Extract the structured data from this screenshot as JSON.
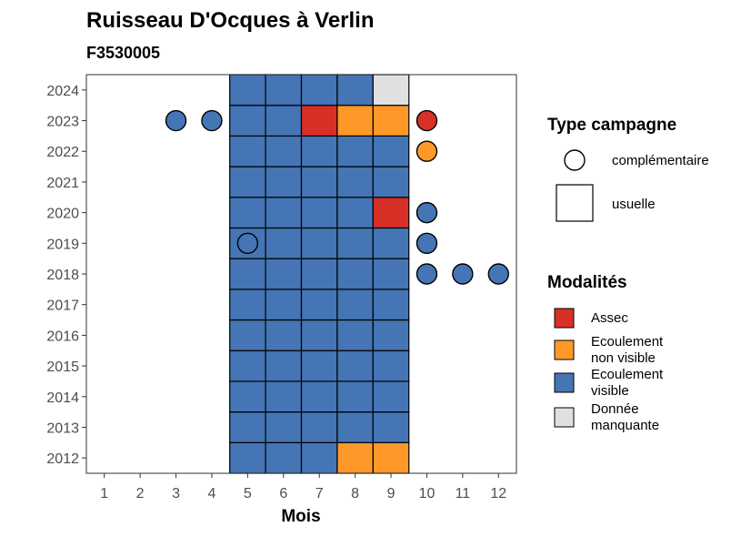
{
  "chart_data": {
    "type": "heatmap",
    "title": "Ruisseau D'Ocques à Verlin",
    "subtitle": "F3530005",
    "xlabel": "Mois",
    "ylabel": "",
    "x_ticks": [
      "1",
      "2",
      "3",
      "4",
      "5",
      "6",
      "7",
      "8",
      "9",
      "10",
      "11",
      "12"
    ],
    "y_ticks": [
      "2012",
      "2013",
      "2014",
      "2015",
      "2016",
      "2017",
      "2018",
      "2019",
      "2020",
      "2021",
      "2022",
      "2023",
      "2024"
    ],
    "xlim": [
      0.5,
      12.5
    ],
    "ylim": [
      2011.5,
      2024.5
    ],
    "grid": false,
    "colors": {
      "Assec": "#d73027",
      "Ecoulement non visible": "#fe9929",
      "Ecoulement visible": "#4575b4",
      "Donnée manquante": "#e0e0e0"
    },
    "usuelle": [
      {
        "year": 2012,
        "month": 5,
        "modalite": "Ecoulement visible"
      },
      {
        "year": 2012,
        "month": 6,
        "modalite": "Ecoulement visible"
      },
      {
        "year": 2012,
        "month": 7,
        "modalite": "Ecoulement visible"
      },
      {
        "year": 2012,
        "month": 8,
        "modalite": "Ecoulement non visible"
      },
      {
        "year": 2012,
        "month": 9,
        "modalite": "Ecoulement non visible"
      },
      {
        "year": 2013,
        "month": 5,
        "modalite": "Ecoulement visible"
      },
      {
        "year": 2013,
        "month": 6,
        "modalite": "Ecoulement visible"
      },
      {
        "year": 2013,
        "month": 7,
        "modalite": "Ecoulement visible"
      },
      {
        "year": 2013,
        "month": 8,
        "modalite": "Ecoulement visible"
      },
      {
        "year": 2013,
        "month": 9,
        "modalite": "Ecoulement visible"
      },
      {
        "year": 2014,
        "month": 5,
        "modalite": "Ecoulement visible"
      },
      {
        "year": 2014,
        "month": 6,
        "modalite": "Ecoulement visible"
      },
      {
        "year": 2014,
        "month": 7,
        "modalite": "Ecoulement visible"
      },
      {
        "year": 2014,
        "month": 8,
        "modalite": "Ecoulement visible"
      },
      {
        "year": 2014,
        "month": 9,
        "modalite": "Ecoulement visible"
      },
      {
        "year": 2015,
        "month": 5,
        "modalite": "Ecoulement visible"
      },
      {
        "year": 2015,
        "month": 6,
        "modalite": "Ecoulement visible"
      },
      {
        "year": 2015,
        "month": 7,
        "modalite": "Ecoulement visible"
      },
      {
        "year": 2015,
        "month": 8,
        "modalite": "Ecoulement visible"
      },
      {
        "year": 2015,
        "month": 9,
        "modalite": "Ecoulement visible"
      },
      {
        "year": 2016,
        "month": 5,
        "modalite": "Ecoulement visible"
      },
      {
        "year": 2016,
        "month": 6,
        "modalite": "Ecoulement visible"
      },
      {
        "year": 2016,
        "month": 7,
        "modalite": "Ecoulement visible"
      },
      {
        "year": 2016,
        "month": 8,
        "modalite": "Ecoulement visible"
      },
      {
        "year": 2016,
        "month": 9,
        "modalite": "Ecoulement visible"
      },
      {
        "year": 2017,
        "month": 5,
        "modalite": "Ecoulement visible"
      },
      {
        "year": 2017,
        "month": 6,
        "modalite": "Ecoulement visible"
      },
      {
        "year": 2017,
        "month": 7,
        "modalite": "Ecoulement visible"
      },
      {
        "year": 2017,
        "month": 8,
        "modalite": "Ecoulement visible"
      },
      {
        "year": 2017,
        "month": 9,
        "modalite": "Ecoulement visible"
      },
      {
        "year": 2018,
        "month": 5,
        "modalite": "Ecoulement visible"
      },
      {
        "year": 2018,
        "month": 6,
        "modalite": "Ecoulement visible"
      },
      {
        "year": 2018,
        "month": 7,
        "modalite": "Ecoulement visible"
      },
      {
        "year": 2018,
        "month": 8,
        "modalite": "Ecoulement visible"
      },
      {
        "year": 2018,
        "month": 9,
        "modalite": "Ecoulement visible"
      },
      {
        "year": 2019,
        "month": 5,
        "modalite": "Ecoulement visible"
      },
      {
        "year": 2019,
        "month": 6,
        "modalite": "Ecoulement visible"
      },
      {
        "year": 2019,
        "month": 7,
        "modalite": "Ecoulement visible"
      },
      {
        "year": 2019,
        "month": 8,
        "modalite": "Ecoulement visible"
      },
      {
        "year": 2019,
        "month": 9,
        "modalite": "Ecoulement visible"
      },
      {
        "year": 2020,
        "month": 5,
        "modalite": "Ecoulement visible"
      },
      {
        "year": 2020,
        "month": 6,
        "modalite": "Ecoulement visible"
      },
      {
        "year": 2020,
        "month": 7,
        "modalite": "Ecoulement visible"
      },
      {
        "year": 2020,
        "month": 8,
        "modalite": "Ecoulement visible"
      },
      {
        "year": 2020,
        "month": 9,
        "modalite": "Assec"
      },
      {
        "year": 2021,
        "month": 5,
        "modalite": "Ecoulement visible"
      },
      {
        "year": 2021,
        "month": 6,
        "modalite": "Ecoulement visible"
      },
      {
        "year": 2021,
        "month": 7,
        "modalite": "Ecoulement visible"
      },
      {
        "year": 2021,
        "month": 8,
        "modalite": "Ecoulement visible"
      },
      {
        "year": 2021,
        "month": 9,
        "modalite": "Ecoulement visible"
      },
      {
        "year": 2022,
        "month": 5,
        "modalite": "Ecoulement visible"
      },
      {
        "year": 2022,
        "month": 6,
        "modalite": "Ecoulement visible"
      },
      {
        "year": 2022,
        "month": 7,
        "modalite": "Ecoulement visible"
      },
      {
        "year": 2022,
        "month": 8,
        "modalite": "Ecoulement visible"
      },
      {
        "year": 2022,
        "month": 9,
        "modalite": "Ecoulement visible"
      },
      {
        "year": 2023,
        "month": 5,
        "modalite": "Ecoulement visible"
      },
      {
        "year": 2023,
        "month": 6,
        "modalite": "Ecoulement visible"
      },
      {
        "year": 2023,
        "month": 7,
        "modalite": "Assec"
      },
      {
        "year": 2023,
        "month": 8,
        "modalite": "Ecoulement non visible"
      },
      {
        "year": 2023,
        "month": 9,
        "modalite": "Ecoulement non visible"
      },
      {
        "year": 2024,
        "month": 5,
        "modalite": "Ecoulement visible"
      },
      {
        "year": 2024,
        "month": 6,
        "modalite": "Ecoulement visible"
      },
      {
        "year": 2024,
        "month": 7,
        "modalite": "Ecoulement visible"
      },
      {
        "year": 2024,
        "month": 8,
        "modalite": "Ecoulement visible"
      },
      {
        "year": 2024,
        "month": 9,
        "modalite": "Donnée manquante"
      }
    ],
    "complementaire": [
      {
        "year": 2023,
        "month": 3,
        "modalite": "Ecoulement visible"
      },
      {
        "year": 2023,
        "month": 4,
        "modalite": "Ecoulement visible"
      },
      {
        "year": 2023,
        "month": 10,
        "modalite": "Assec"
      },
      {
        "year": 2022,
        "month": 10,
        "modalite": "Ecoulement non visible"
      },
      {
        "year": 2020,
        "month": 10,
        "modalite": "Ecoulement visible"
      },
      {
        "year": 2019,
        "month": 5,
        "modalite": "Ecoulement visible"
      },
      {
        "year": 2019,
        "month": 10,
        "modalite": "Ecoulement visible"
      },
      {
        "year": 2018,
        "month": 10,
        "modalite": "Ecoulement visible"
      },
      {
        "year": 2018,
        "month": 11,
        "modalite": "Ecoulement visible"
      },
      {
        "year": 2018,
        "month": 12,
        "modalite": "Ecoulement visible"
      }
    ],
    "legends": {
      "shape": {
        "title": "Type campagne",
        "items": [
          "complémentaire",
          "usuelle"
        ]
      },
      "fill": {
        "title": "Modalités",
        "items": [
          {
            "lines": [
              "Assec"
            ],
            "key": "Assec"
          },
          {
            "lines": [
              "Ecoulement",
              "non visible"
            ],
            "key": "Ecoulement non visible"
          },
          {
            "lines": [
              "Ecoulement",
              "visible"
            ],
            "key": "Ecoulement visible"
          },
          {
            "lines": [
              "Donnée",
              "manquante"
            ],
            "key": "Donnée manquante"
          }
        ]
      },
      "placement": "right"
    }
  }
}
